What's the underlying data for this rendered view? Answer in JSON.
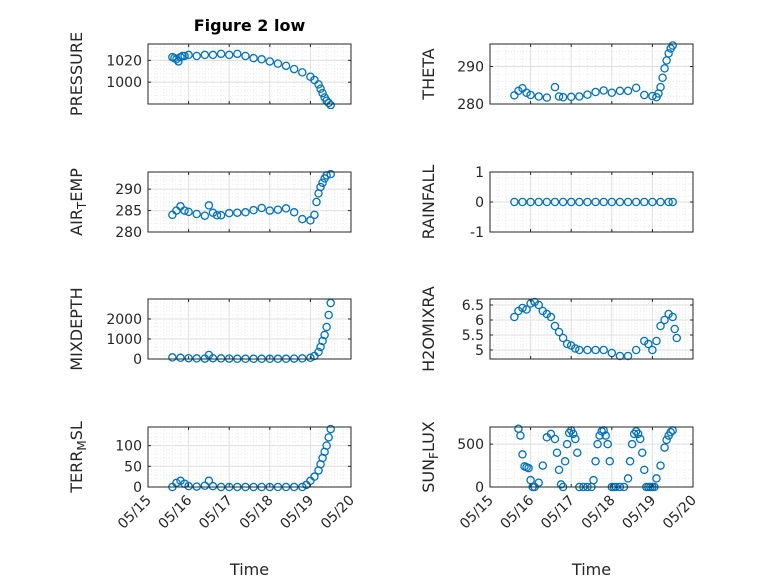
{
  "figure": {
    "title": "Figure 2 low",
    "marker_color": "#0072bd"
  },
  "chart_data": [
    {
      "id": "pressure",
      "type": "scatter",
      "title": "Figure 2 low",
      "ylabel": "PRESSURE",
      "xlabel": "",
      "xlim": [
        0,
        5
      ],
      "ylim": [
        980,
        1035
      ],
      "yticks": [
        1000,
        1020
      ],
      "yticklabels": [
        "1000",
        "1020"
      ],
      "xticks": [
        0,
        1,
        2,
        3,
        4,
        5
      ],
      "xticklabels": [],
      "grid": true,
      "minor_grid": true,
      "x": [
        0.6,
        0.65,
        0.7,
        0.75,
        0.8,
        0.85,
        0.9,
        1.0,
        1.2,
        1.4,
        1.6,
        1.8,
        2.0,
        2.2,
        2.4,
        2.6,
        2.8,
        3.0,
        3.2,
        3.4,
        3.6,
        3.8,
        4.0,
        4.1,
        4.2,
        4.25,
        4.3,
        4.35,
        4.4,
        4.45,
        4.5
      ],
      "y": [
        1023,
        1022,
        1021,
        1019,
        1023,
        1024,
        1024,
        1025,
        1024,
        1025,
        1025,
        1026,
        1025,
        1026,
        1024,
        1022,
        1021,
        1019,
        1017,
        1015,
        1012,
        1009,
        1005,
        1002,
        998,
        994,
        990,
        986,
        983,
        981,
        979
      ]
    },
    {
      "id": "theta",
      "type": "scatter",
      "title": "",
      "ylabel": "THETA",
      "xlabel": "",
      "xlim": [
        0,
        5
      ],
      "ylim": [
        280,
        296
      ],
      "yticks": [
        280,
        290
      ],
      "yticklabels": [
        "280",
        "290"
      ],
      "xticks": [
        0,
        1,
        2,
        3,
        4,
        5
      ],
      "xticklabels": [],
      "grid": true,
      "minor_grid": true,
      "x": [
        0.6,
        0.7,
        0.8,
        0.9,
        1.0,
        1.2,
        1.4,
        1.6,
        1.7,
        1.8,
        2.0,
        2.2,
        2.4,
        2.6,
        2.8,
        3.0,
        3.2,
        3.4,
        3.6,
        3.8,
        4.0,
        4.1,
        4.15,
        4.2,
        4.25,
        4.3,
        4.35,
        4.4,
        4.45,
        4.5
      ],
      "y": [
        282.3,
        283.5,
        284.2,
        283.0,
        282.4,
        282.0,
        281.7,
        284.5,
        282.0,
        281.8,
        281.9,
        282.0,
        282.5,
        283.2,
        283.6,
        283.0,
        283.5,
        283.5,
        284.3,
        282.4,
        282.1,
        281.8,
        282.8,
        284.5,
        287.0,
        289.5,
        291.6,
        293.5,
        294.8,
        295.6
      ]
    },
    {
      "id": "air-temp",
      "type": "scatter",
      "title": "",
      "ylabel": "AIR_TEMP",
      "xlabel": "",
      "xlim": [
        0,
        5
      ],
      "ylim": [
        280,
        294
      ],
      "yticks": [
        280,
        285,
        290
      ],
      "yticklabels": [
        "280",
        "285",
        "290"
      ],
      "xticks": [
        0,
        1,
        2,
        3,
        4,
        5
      ],
      "xticklabels": [],
      "grid": true,
      "minor_grid": true,
      "x": [
        0.6,
        0.7,
        0.8,
        0.9,
        1.0,
        1.2,
        1.4,
        1.5,
        1.6,
        1.7,
        1.8,
        2.0,
        2.2,
        2.4,
        2.6,
        2.8,
        3.0,
        3.2,
        3.4,
        3.6,
        3.8,
        4.0,
        4.1,
        4.15,
        4.2,
        4.25,
        4.3,
        4.35,
        4.4,
        4.5
      ],
      "y": [
        284.0,
        285.0,
        286.0,
        285.0,
        284.7,
        284.2,
        283.8,
        286.2,
        284.5,
        283.9,
        283.9,
        284.4,
        284.5,
        284.6,
        285.1,
        285.6,
        285.0,
        285.2,
        285.5,
        284.6,
        283.0,
        282.7,
        284.0,
        287.0,
        289.0,
        290.5,
        291.5,
        292.5,
        293.2,
        293.5
      ]
    },
    {
      "id": "rainfall",
      "type": "scatter",
      "title": "",
      "ylabel": "RAINFALL",
      "xlabel": "",
      "xlim": [
        0,
        5
      ],
      "ylim": [
        -1,
        1
      ],
      "yticks": [
        -1,
        0,
        1
      ],
      "yticklabels": [
        "-1",
        "0",
        "1"
      ],
      "xticks": [
        0,
        1,
        2,
        3,
        4,
        5
      ],
      "xticklabels": [],
      "grid": true,
      "minor_grid": true,
      "x": [
        0.6,
        0.8,
        1.0,
        1.2,
        1.4,
        1.6,
        1.8,
        2.0,
        2.2,
        2.4,
        2.6,
        2.8,
        3.0,
        3.2,
        3.4,
        3.6,
        3.8,
        4.0,
        4.2,
        4.4,
        4.5
      ],
      "y": [
        0,
        0,
        0,
        0,
        0,
        0,
        0,
        0,
        0,
        0,
        0,
        0,
        0,
        0,
        0,
        0,
        0,
        0,
        0,
        0,
        0
      ]
    },
    {
      "id": "mixdepth",
      "type": "scatter",
      "title": "",
      "ylabel": "MIXDEPTH",
      "xlabel": "",
      "xlim": [
        0,
        5
      ],
      "ylim": [
        0,
        3000
      ],
      "yticks": [
        0,
        1000,
        2000
      ],
      "yticklabels": [
        "0",
        "1000",
        "2000"
      ],
      "xticks": [
        0,
        1,
        2,
        3,
        4,
        5
      ],
      "xticklabels": [],
      "grid": true,
      "minor_grid": true,
      "x": [
        0.6,
        0.8,
        1.0,
        1.2,
        1.4,
        1.5,
        1.6,
        1.8,
        2.0,
        2.2,
        2.4,
        2.6,
        2.8,
        3.0,
        3.2,
        3.4,
        3.6,
        3.8,
        4.0,
        4.1,
        4.2,
        4.25,
        4.3,
        4.35,
        4.4,
        4.45,
        4.5
      ],
      "y": [
        80,
        60,
        40,
        30,
        20,
        200,
        40,
        30,
        20,
        10,
        10,
        10,
        10,
        10,
        10,
        10,
        20,
        30,
        60,
        150,
        350,
        600,
        900,
        1200,
        1600,
        2200,
        2800
      ]
    },
    {
      "id": "h2omixra",
      "type": "scatter",
      "title": "",
      "ylabel": "H2OMIXRA",
      "xlabel": "",
      "xlim": [
        0,
        5
      ],
      "ylim": [
        4.7,
        6.7
      ],
      "yticks": [
        5,
        5.5,
        6,
        6.5
      ],
      "yticklabels": [
        "5",
        "5.5",
        "6",
        "6.5"
      ],
      "xticks": [
        0,
        1,
        2,
        3,
        4,
        5
      ],
      "xticklabels": [],
      "grid": true,
      "minor_grid": true,
      "x": [
        0.6,
        0.7,
        0.8,
        0.9,
        1.0,
        1.1,
        1.2,
        1.3,
        1.4,
        1.5,
        1.6,
        1.7,
        1.8,
        1.9,
        2.0,
        2.1,
        2.2,
        2.4,
        2.6,
        2.8,
        3.0,
        3.2,
        3.4,
        3.6,
        3.8,
        3.9,
        4.0,
        4.1,
        4.2,
        4.3,
        4.4,
        4.5,
        4.55,
        4.6
      ],
      "y": [
        6.1,
        6.3,
        6.4,
        6.35,
        6.55,
        6.6,
        6.5,
        6.3,
        6.2,
        6.1,
        5.8,
        5.6,
        5.4,
        5.2,
        5.15,
        5.05,
        5.0,
        5.0,
        5.0,
        5.0,
        4.9,
        4.8,
        4.8,
        5.0,
        5.3,
        5.2,
        5.0,
        5.3,
        5.8,
        6.0,
        6.2,
        6.1,
        5.7,
        5.4
      ]
    },
    {
      "id": "terr-msl",
      "type": "scatter",
      "title": "",
      "ylabel": "TERR_MSL",
      "xlabel": "Time",
      "xlim": [
        0,
        5
      ],
      "ylim": [
        0,
        145
      ],
      "yticks": [
        0,
        50,
        100
      ],
      "yticklabels": [
        "0",
        "50",
        "100"
      ],
      "xticks": [
        0,
        1,
        2,
        3,
        4,
        5
      ],
      "xticklabels": [
        "05/15",
        "05/16",
        "05/17",
        "05/18",
        "05/19",
        "05/20"
      ],
      "grid": true,
      "minor_grid": true,
      "x": [
        0.6,
        0.7,
        0.8,
        0.9,
        1.0,
        1.2,
        1.4,
        1.5,
        1.6,
        1.8,
        2.0,
        2.2,
        2.4,
        2.6,
        2.8,
        3.0,
        3.2,
        3.4,
        3.6,
        3.8,
        3.9,
        4.0,
        4.1,
        4.2,
        4.25,
        4.3,
        4.35,
        4.4,
        4.45,
        4.5
      ],
      "y": [
        0,
        10,
        15,
        8,
        2,
        1,
        3,
        15,
        2,
        0,
        0,
        0,
        0,
        0,
        0,
        0,
        0,
        0,
        0,
        0,
        5,
        15,
        25,
        40,
        55,
        70,
        85,
        100,
        120,
        140
      ]
    },
    {
      "id": "sun-flux",
      "type": "scatter",
      "title": "",
      "ylabel": "SUN_FLUX",
      "xlabel": "Time",
      "xlim": [
        0,
        5
      ],
      "ylim": [
        0,
        700
      ],
      "yticks": [
        0,
        500
      ],
      "yticklabels": [
        "0",
        "500"
      ],
      "xticks": [
        0,
        1,
        2,
        3,
        4,
        5
      ],
      "xticklabels": [
        "05/15",
        "05/16",
        "05/17",
        "05/18",
        "05/19",
        "05/20"
      ],
      "grid": true,
      "minor_grid": true,
      "x": [
        0.7,
        0.75,
        0.8,
        0.85,
        0.9,
        0.95,
        1.0,
        1.05,
        1.1,
        1.2,
        1.3,
        1.4,
        1.5,
        1.6,
        1.65,
        1.7,
        1.75,
        1.8,
        1.85,
        1.9,
        1.95,
        2.0,
        2.05,
        2.1,
        2.15,
        2.2,
        2.3,
        2.4,
        2.5,
        2.55,
        2.6,
        2.65,
        2.7,
        2.75,
        2.8,
        2.85,
        2.9,
        2.95,
        3.0,
        3.05,
        3.1,
        3.2,
        3.3,
        3.4,
        3.45,
        3.5,
        3.55,
        3.6,
        3.65,
        3.7,
        3.75,
        3.8,
        3.85,
        3.9,
        3.95,
        4.0,
        4.05,
        4.1,
        4.2,
        4.3,
        4.35,
        4.4,
        4.45,
        4.5
      ],
      "y": [
        680,
        600,
        380,
        240,
        230,
        220,
        80,
        0,
        0,
        50,
        250,
        580,
        620,
        560,
        400,
        200,
        30,
        0,
        300,
        500,
        630,
        660,
        620,
        560,
        400,
        0,
        0,
        0,
        0,
        80,
        300,
        500,
        600,
        650,
        660,
        600,
        500,
        300,
        0,
        0,
        0,
        0,
        0,
        100,
        300,
        500,
        620,
        650,
        620,
        560,
        400,
        200,
        0,
        0,
        0,
        0,
        0,
        100,
        250,
        460,
        550,
        600,
        640,
        660
      ]
    }
  ]
}
